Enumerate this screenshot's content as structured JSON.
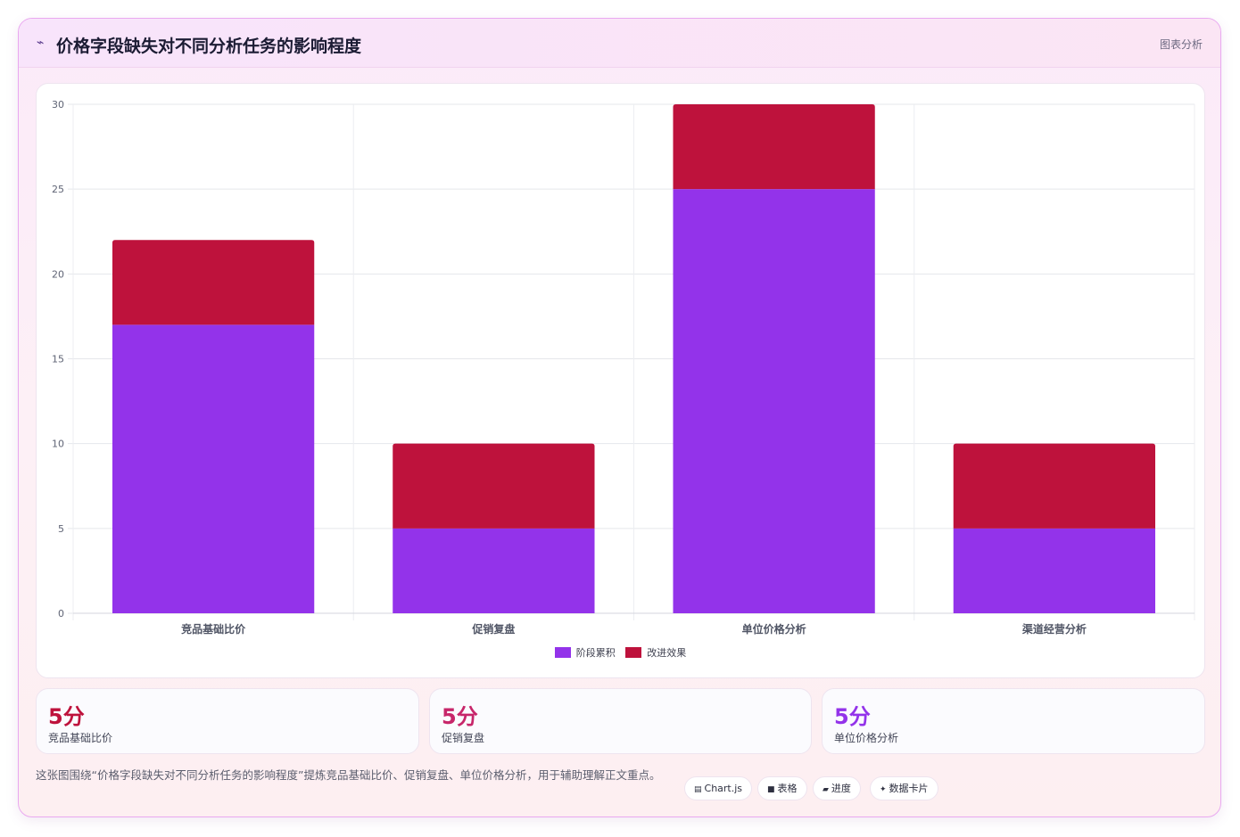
{
  "header": {
    "icon": "chart-line-icon",
    "icon_glyph": "⌁",
    "title": "价格字段缺失对不同分析任务的影响程度",
    "tag": "图表分析"
  },
  "chart_data": {
    "type": "bar",
    "stacked": true,
    "categories": [
      "竞品基础比价",
      "促销复盘",
      "单位价格分析",
      "渠道经营分析"
    ],
    "series": [
      {
        "name": "阶段累积",
        "values": [
          17,
          5,
          25,
          5
        ],
        "color": "#9333ea"
      },
      {
        "name": "改进效果",
        "values": [
          5,
          5,
          5,
          5
        ],
        "color": "#be123c"
      }
    ],
    "ylim": [
      0,
      30
    ],
    "yticks": [
      0,
      5,
      10,
      15,
      20,
      25,
      30
    ],
    "grid": true,
    "legend": "bottom"
  },
  "stats": [
    {
      "value": "5分",
      "label": "竞品基础比价",
      "color": "#be123c"
    },
    {
      "value": "5分",
      "label": "促销复盘",
      "color": "#c7266a"
    },
    {
      "value": "5分",
      "label": "单位价格分析",
      "color": "#9333ea"
    }
  ],
  "footer": {
    "text": "这张图围绕“价格字段缺失对不同分析任务的影响程度”提炼竞品基础比价、促销复盘、单位价格分析，用于辅助理解正文重点。",
    "chips": [
      {
        "icon": "chart-icon",
        "glyph": "▤",
        "label": "Chart.js"
      },
      {
        "icon": "table-icon",
        "glyph": "■",
        "label": "表格"
      },
      {
        "icon": "progress-icon",
        "glyph": "▰",
        "label": "进度"
      },
      {
        "icon": "data-card-icon",
        "glyph": "✦",
        "label": "数据卡片"
      }
    ]
  }
}
